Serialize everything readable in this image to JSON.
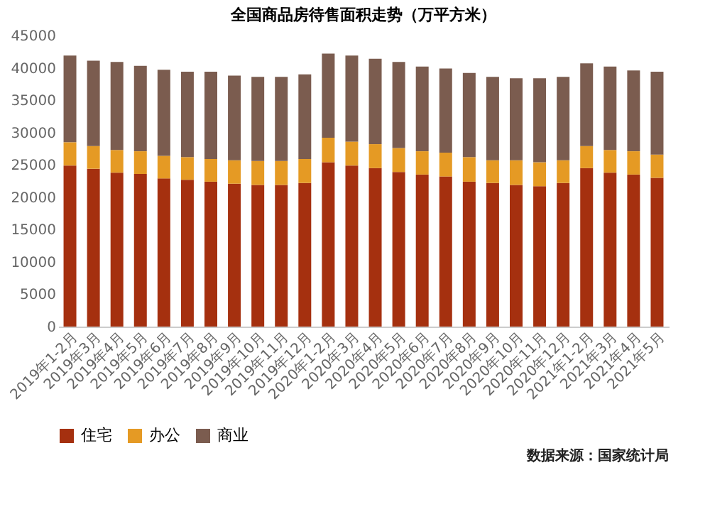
{
  "chart_data": {
    "type": "bar",
    "title": "全国商品房待售面积走势（万平方米）",
    "stacked": true,
    "categories": [
      "2019年1-2月",
      "2019年3月",
      "2019年4月",
      "2019年5月",
      "2019年6月",
      "2019年7月",
      "2019年8月",
      "2019年9月",
      "2019年10月",
      "2019年11月",
      "2019年12月",
      "2020年1-2月",
      "2020年3月",
      "2020年4月",
      "2020年5月",
      "2020年6月",
      "2020年7月",
      "2020年8月",
      "2020年9月",
      "2020年10月",
      "2020年11月",
      "2020年12月",
      "2021年1-2月",
      "2021年3月",
      "2021年4月",
      "2021年5月"
    ],
    "series": [
      {
        "name": "住宅",
        "color": "#a5300f",
        "values": [
          24900,
          24400,
          23800,
          23600,
          22900,
          22700,
          22400,
          22100,
          21900,
          21900,
          22200,
          25400,
          24900,
          24500,
          23900,
          23500,
          23200,
          22400,
          22200,
          21900,
          21700,
          22200,
          24500,
          23800,
          23500,
          23000
        ]
      },
      {
        "name": "办公",
        "color": "#e59a24",
        "values": [
          3600,
          3500,
          3500,
          3500,
          3500,
          3500,
          3500,
          3600,
          3700,
          3700,
          3700,
          3800,
          3700,
          3700,
          3700,
          3600,
          3700,
          3800,
          3500,
          3800,
          3700,
          3500,
          3400,
          3500,
          3600,
          3600
        ]
      },
      {
        "name": "商业",
        "color": "#7b5c4f",
        "values": [
          13400,
          13200,
          13600,
          13200,
          13300,
          13200,
          13500,
          13100,
          13000,
          13000,
          13100,
          13000,
          13300,
          13200,
          13300,
          13100,
          13000,
          13000,
          12900,
          12700,
          13000,
          12900,
          12800,
          12900,
          12500,
          12800
        ]
      }
    ],
    "ylim": [
      0,
      45000
    ],
    "yticks": [
      0,
      5000,
      10000,
      15000,
      20000,
      25000,
      30000,
      35000,
      40000,
      45000
    ],
    "grid": false,
    "legend": "bottom",
    "annotations": [
      "数据来源：国家统计局"
    ]
  }
}
